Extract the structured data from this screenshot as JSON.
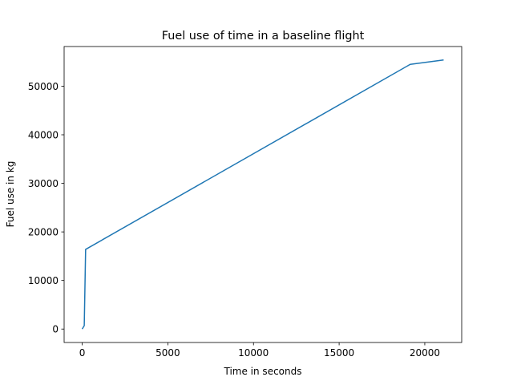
{
  "chart_data": {
    "type": "line",
    "title": "Fuel use of time in a baseline flight",
    "xlabel": "Time in seconds",
    "ylabel": "Fuel use in kg",
    "xlim": [
      -1055,
      22155
    ],
    "ylim": [
      -2770,
      58170
    ],
    "xticks": [
      0,
      5000,
      10000,
      15000,
      20000
    ],
    "yticks": [
      0,
      10000,
      20000,
      30000,
      40000,
      50000
    ],
    "grid": false,
    "series": [
      {
        "color": "#1f77b4",
        "x": [
          0,
          120,
          200,
          19150,
          21100
        ],
        "y": [
          0,
          700,
          16400,
          54500,
          55400
        ]
      }
    ]
  }
}
